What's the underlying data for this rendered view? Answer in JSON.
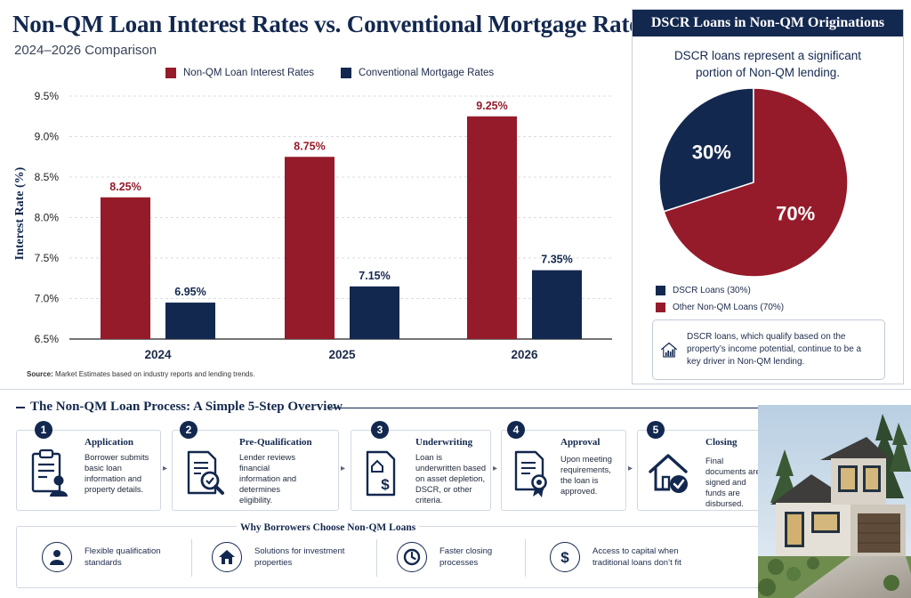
{
  "header": {
    "title": "Non-QM Loan Interest Rates vs. Conventional Mortgage Rates",
    "subtitle": "2024–2026 Comparison"
  },
  "colors": {
    "non_qm": "#951b2a",
    "conventional": "#13284f",
    "navy": "#13284f"
  },
  "chart_data": [
    {
      "type": "bar",
      "categories": [
        "2024",
        "2025",
        "2026"
      ],
      "series": [
        {
          "name": "Non-QM Loan Interest Rates",
          "values": [
            8.25,
            8.75,
            9.25
          ],
          "labels": [
            "8.25%",
            "8.75%",
            "9.25%"
          ],
          "color": "#951b2a"
        },
        {
          "name": "Conventional Mortgage Rates",
          "values": [
            6.95,
            7.15,
            7.35
          ],
          "labels": [
            "6.95%",
            "7.15%",
            "7.35%"
          ],
          "color": "#13284f"
        }
      ],
      "ylabel": "Interest Rate (%)",
      "yticks": [
        "6.5%",
        "7.0%",
        "7.5%",
        "8.0%",
        "8.5%",
        "9.0%",
        "9.5%"
      ],
      "ytick_values": [
        6.5,
        7.0,
        7.5,
        8.0,
        8.5,
        9.0,
        9.5
      ],
      "ylim": [
        6.5,
        9.5
      ],
      "grid": true,
      "legend_position": "top"
    },
    {
      "type": "pie",
      "title": "DSCR Loans in Non-QM Originations",
      "slices": [
        {
          "name": "DSCR Loans (30%)",
          "value": 30,
          "label": "30%",
          "color": "#13284f"
        },
        {
          "name": "Other Non-QM Loans (70%)",
          "value": 70,
          "label": "70%",
          "color": "#951b2a"
        }
      ],
      "legend_position": "bottom-left"
    }
  ],
  "source": {
    "label": "Source:",
    "text": "Market Estimates based on industry reports and lending trends."
  },
  "dscr": {
    "title": "DSCR Loans in Non-QM Originations",
    "intro": "DSCR loans represent a significant portion of Non-QM lending.",
    "note": "DSCR loans, which qualify based on the property’s income potential, continue to be a key driver in Non-QM lending.",
    "note_icon": "house-chart-icon"
  },
  "process": {
    "title": "The Non-QM Loan Process: A Simple 5-Step Overview",
    "steps": [
      {
        "num": "1",
        "title": "Application",
        "desc": "Borrower submits basic loan information and property details.",
        "icon": "clipboard-person-icon"
      },
      {
        "num": "2",
        "title": "Pre-Qualification",
        "desc": "Lender reviews financial information and determines eligibility.",
        "icon": "document-magnifier-icon"
      },
      {
        "num": "3",
        "title": "Underwriting",
        "desc": "Loan is underwritten based on asset depletion, DSCR, or other criteria.",
        "icon": "document-dollar-icon"
      },
      {
        "num": "4",
        "title": "Approval",
        "desc": "Upon meeting requirements, the loan is approved.",
        "icon": "certificate-icon"
      },
      {
        "num": "5",
        "title": "Closing",
        "desc": "Final documents are signed and funds are disbursed.",
        "icon": "house-check-icon"
      }
    ]
  },
  "why": {
    "title": "Why Borrowers Choose Non-QM Loans",
    "items": [
      {
        "text": "Flexible qualification standards",
        "icon": "person-icon"
      },
      {
        "text": "Solutions for investment properties",
        "icon": "house-icon"
      },
      {
        "text": "Faster closing processes",
        "icon": "clock-icon"
      },
      {
        "text": "Access to capital when traditional loans don’t fit",
        "icon": "dollar-icon"
      }
    ]
  }
}
